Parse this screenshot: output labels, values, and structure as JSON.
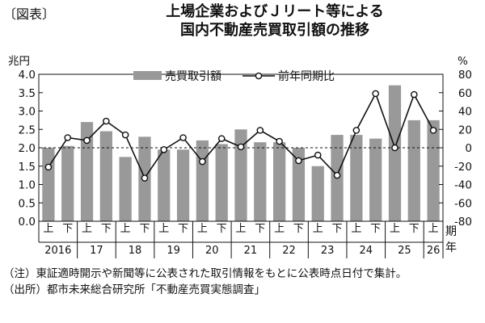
{
  "figure_label": "〔図表〕",
  "title_lines": [
    "上場企業およびＪリート等による",
    "国内不動産売買取引額の推移"
  ],
  "chart_data": {
    "type": "bar+line",
    "left_axis": {
      "unit": "兆円",
      "min": 0,
      "max": 4,
      "step": 0.5,
      "ticks": [
        "0.0",
        "0.5",
        "1.0",
        "1.5",
        "2.0",
        "2.5",
        "3.0",
        "3.5",
        "4.0"
      ]
    },
    "right_axis": {
      "unit": "%",
      "min": -80,
      "max": 80,
      "step": 20,
      "ticks": [
        "-80",
        "-60",
        "-40",
        "-20",
        "0",
        "20",
        "40",
        "60",
        "80"
      ]
    },
    "half_labels": [
      "上",
      "下",
      "上",
      "下",
      "上",
      "下",
      "上",
      "下",
      "上",
      "下",
      "上",
      "下",
      "上",
      "下",
      "上",
      "下",
      "上",
      "下",
      "上",
      "下",
      "上"
    ],
    "year_labels": [
      "2016",
      "17",
      "18",
      "19",
      "20",
      "21",
      "22",
      "23",
      "24",
      "25",
      "26"
    ],
    "period_suffix": "期",
    "year_suffix": "年",
    "series": [
      {
        "name": "売買取引額",
        "kind": "bar",
        "axis": "left",
        "color": "#999999",
        "values": [
          2.0,
          2.05,
          2.7,
          2.45,
          1.75,
          2.3,
          1.95,
          1.95,
          2.2,
          2.1,
          2.5,
          2.15,
          2.15,
          2.0,
          1.5,
          2.35,
          2.35,
          2.25,
          3.7,
          2.75,
          2.75
        ]
      },
      {
        "name": "前年同期比",
        "kind": "line",
        "axis": "right",
        "color": "#111111",
        "values": [
          -21,
          11,
          8,
          29,
          14,
          -33,
          -2,
          11,
          -15,
          10,
          1,
          19,
          7,
          -14,
          -8,
          -30,
          19,
          59,
          0,
          58,
          19
        ]
      }
    ],
    "reference_line": {
      "axis": "right",
      "value": 0,
      "style": "dashed"
    },
    "legend": "top-center"
  },
  "notes": {
    "note_label": "（注）",
    "note_text": "東証適時開示や新聞等に公表された取引情報をもとに公表時点日付で集計。",
    "source_label": "（出所）",
    "source_text": "都市未来総合研究所「不動産売買実態調査」"
  }
}
